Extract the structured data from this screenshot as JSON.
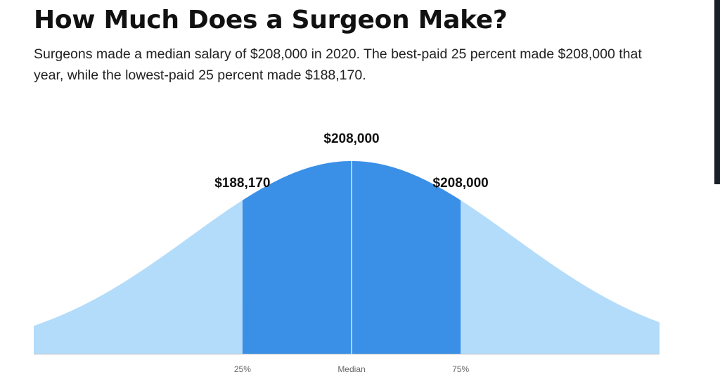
{
  "page": {
    "title": "How Much Does a Surgeon Make?",
    "subtitle": "Surgeons made a median salary of $208,000 in 2020. The best-paid 25 percent made $208,000 that year, while the lowest-paid 25 percent made $188,170."
  },
  "chart_data": {
    "type": "area",
    "distribution": "normal",
    "percentile_markers": [
      {
        "tick": "25%",
        "value_label": "$188,170",
        "value": 188170
      },
      {
        "tick": "Median",
        "value_label": "$208,000",
        "value": 208000
      },
      {
        "tick": "75%",
        "value_label": "$208,000",
        "value": 208000
      }
    ],
    "colors": {
      "tails": "#b3dcfb",
      "middle_50": "#3a8fe6",
      "divider": "#ffffff",
      "guide_line": "#dddddd",
      "baseline": "#bdbdbd"
    },
    "grid": false,
    "legend": "none"
  }
}
